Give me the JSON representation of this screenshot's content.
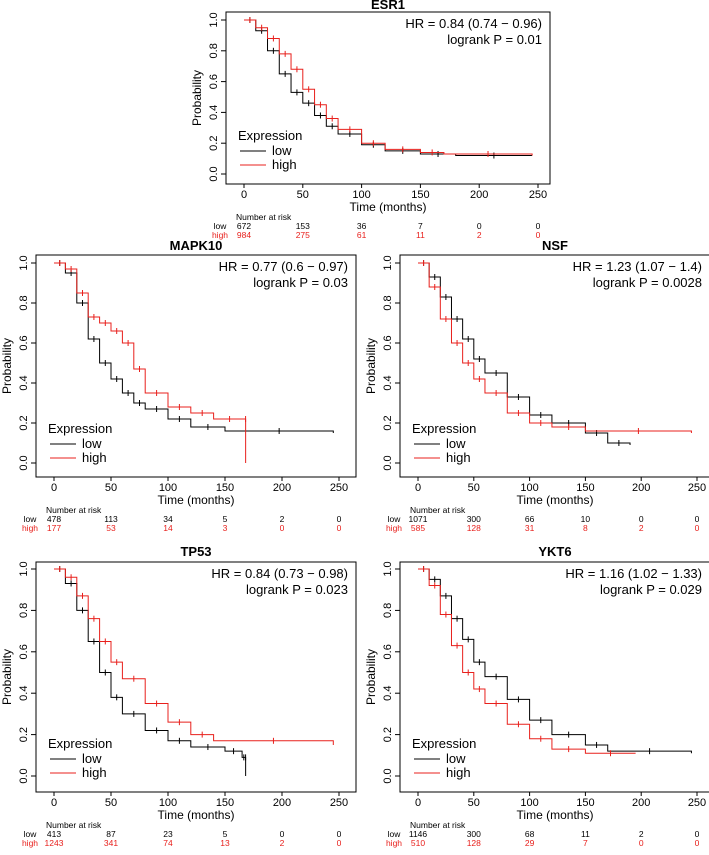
{
  "colors": {
    "low": "#000000",
    "high": "#e8201c"
  },
  "chart_data": [
    {
      "type": "line",
      "title": "ESR1",
      "hr_text": "HR = 0.84 (0.74 − 0.96)",
      "logrank_text": "logrank P = 0.01",
      "xlabel": "Time (months)",
      "ylabel": "Probability",
      "xlim": [
        0,
        250
      ],
      "ylim": [
        0,
        1
      ],
      "xticks": [
        "0",
        "50",
        "100",
        "150",
        "200",
        "250"
      ],
      "yticks": [
        "0.0",
        "0.2",
        "0.4",
        "0.6",
        "0.8",
        "1.0"
      ],
      "legend": {
        "title": "Expression",
        "placement": "bottom-left",
        "entries": [
          "low",
          "high"
        ]
      },
      "series": [
        {
          "name": "low",
          "x": [
            0,
            10,
            20,
            30,
            40,
            50,
            60,
            70,
            80,
            100,
            120,
            150,
            180,
            245
          ],
          "y": [
            1,
            0.93,
            0.8,
            0.65,
            0.53,
            0.46,
            0.38,
            0.31,
            0.26,
            0.19,
            0.15,
            0.13,
            0.12,
            0.12
          ]
        },
        {
          "name": "high",
          "x": [
            0,
            10,
            20,
            30,
            40,
            50,
            60,
            70,
            80,
            100,
            120,
            150,
            170,
            245
          ],
          "y": [
            1,
            0.95,
            0.88,
            0.78,
            0.68,
            0.55,
            0.45,
            0.36,
            0.29,
            0.2,
            0.16,
            0.14,
            0.13,
            0.12
          ]
        }
      ],
      "risk_table": {
        "header": "Number at risk",
        "low_label": "low",
        "high_label": "high",
        "low": [
          "672",
          "153",
          "36",
          "7",
          "0",
          "0"
        ],
        "high": [
          "984",
          "275",
          "61",
          "11",
          "2",
          "0"
        ]
      }
    },
    {
      "type": "line",
      "title": "MAPK10",
      "hr_text": "HR = 0.77 (0.6 − 0.97)",
      "logrank_text": "logrank P = 0.03",
      "xlabel": "Time (months)",
      "ylabel": "Probability",
      "xlim": [
        0,
        250
      ],
      "ylim": [
        0,
        1
      ],
      "xticks": [
        "0",
        "50",
        "100",
        "150",
        "200",
        "250"
      ],
      "yticks": [
        "0.0",
        "0.2",
        "0.4",
        "0.6",
        "0.8",
        "1.0"
      ],
      "legend": {
        "title": "Expression",
        "placement": "bottom-left",
        "entries": [
          "low",
          "high"
        ]
      },
      "series": [
        {
          "name": "low",
          "x": [
            0,
            10,
            20,
            30,
            40,
            50,
            60,
            70,
            80,
            100,
            120,
            150,
            245
          ],
          "y": [
            1,
            0.95,
            0.8,
            0.62,
            0.5,
            0.42,
            0.35,
            0.3,
            0.27,
            0.22,
            0.18,
            0.16,
            0.15
          ]
        },
        {
          "name": "high",
          "x": [
            0,
            10,
            20,
            30,
            40,
            50,
            60,
            70,
            80,
            100,
            120,
            140,
            168,
            168.1
          ],
          "y": [
            1,
            0.97,
            0.85,
            0.73,
            0.7,
            0.66,
            0.6,
            0.47,
            0.35,
            0.28,
            0.25,
            0.22,
            0.22,
            0.0
          ]
        }
      ],
      "risk_table": {
        "header": "Number at risk",
        "low_label": "low",
        "high_label": "high",
        "low": [
          "478",
          "113",
          "34",
          "5",
          "2",
          "0"
        ],
        "high": [
          "177",
          "53",
          "14",
          "3",
          "0",
          "0"
        ]
      }
    },
    {
      "type": "line",
      "title": "NSF",
      "hr_text": "HR = 1.23 (1.07 − 1.4)",
      "logrank_text": "logrank P = 0.0028",
      "xlabel": "Time (months)",
      "ylabel": "Probability",
      "xlim": [
        0,
        250
      ],
      "ylim": [
        0,
        1
      ],
      "xticks": [
        "0",
        "50",
        "100",
        "150",
        "200",
        "250"
      ],
      "yticks": [
        "0.0",
        "0.2",
        "0.4",
        "0.6",
        "0.8",
        "1.0"
      ],
      "legend": {
        "title": "Expression",
        "placement": "bottom-left",
        "entries": [
          "low",
          "high"
        ]
      },
      "series": [
        {
          "name": "low",
          "x": [
            0,
            10,
            20,
            30,
            40,
            50,
            60,
            80,
            100,
            120,
            150,
            170,
            190
          ],
          "y": [
            1,
            0.93,
            0.83,
            0.72,
            0.62,
            0.52,
            0.45,
            0.33,
            0.24,
            0.2,
            0.15,
            0.1,
            0.09
          ]
        },
        {
          "name": "high",
          "x": [
            0,
            10,
            20,
            30,
            40,
            50,
            60,
            80,
            100,
            120,
            150,
            245
          ],
          "y": [
            1,
            0.88,
            0.72,
            0.6,
            0.5,
            0.42,
            0.35,
            0.25,
            0.2,
            0.18,
            0.16,
            0.15
          ]
        }
      ],
      "risk_table": {
        "header": "Number at risk",
        "low_label": "low",
        "high_label": "high",
        "low": [
          "1071",
          "300",
          "66",
          "10",
          "0",
          "0"
        ],
        "high": [
          "585",
          "128",
          "31",
          "8",
          "2",
          "0"
        ]
      }
    },
    {
      "type": "line",
      "title": "TP53",
      "hr_text": "HR = 0.84 (0.73 − 0.98)",
      "logrank_text": "logrank P = 0.023",
      "xlabel": "Time (months)",
      "ylabel": "Probability",
      "xlim": [
        0,
        250
      ],
      "ylim": [
        0,
        1
      ],
      "xticks": [
        "0",
        "50",
        "100",
        "150",
        "200",
        "250"
      ],
      "yticks": [
        "0.0",
        "0.2",
        "0.4",
        "0.6",
        "0.8",
        "1.0"
      ],
      "legend": {
        "title": "Expression",
        "placement": "bottom-left",
        "entries": [
          "low",
          "high"
        ]
      },
      "series": [
        {
          "name": "low",
          "x": [
            0,
            10,
            20,
            30,
            40,
            50,
            60,
            80,
            100,
            120,
            150,
            165,
            168,
            168.1
          ],
          "y": [
            1,
            0.93,
            0.8,
            0.65,
            0.5,
            0.38,
            0.3,
            0.22,
            0.17,
            0.14,
            0.12,
            0.09,
            0.09,
            0.0
          ]
        },
        {
          "name": "high",
          "x": [
            0,
            10,
            20,
            30,
            40,
            50,
            60,
            80,
            100,
            120,
            140,
            245
          ],
          "y": [
            1,
            0.96,
            0.87,
            0.76,
            0.65,
            0.55,
            0.47,
            0.35,
            0.26,
            0.2,
            0.17,
            0.15
          ]
        }
      ],
      "risk_table": {
        "header": "Number at risk",
        "low_label": "low",
        "high_label": "high",
        "low": [
          "413",
          "87",
          "23",
          "5",
          "0",
          "0"
        ],
        "high": [
          "1243",
          "341",
          "74",
          "13",
          "2",
          "0"
        ]
      }
    },
    {
      "type": "line",
      "title": "YKT6",
      "hr_text": "HR = 1.16 (1.02 − 1.33)",
      "logrank_text": "logrank P = 0.029",
      "xlabel": "Time (months)",
      "ylabel": "Probability",
      "xlim": [
        0,
        250
      ],
      "ylim": [
        0,
        1
      ],
      "xticks": [
        "0",
        "50",
        "100",
        "150",
        "200",
        "250"
      ],
      "yticks": [
        "0.0",
        "0.2",
        "0.4",
        "0.6",
        "0.8",
        "1.0"
      ],
      "legend": {
        "title": "Expression",
        "placement": "bottom-left",
        "entries": [
          "low",
          "high"
        ]
      },
      "series": [
        {
          "name": "low",
          "x": [
            0,
            10,
            20,
            30,
            40,
            50,
            60,
            80,
            100,
            120,
            150,
            170,
            245
          ],
          "y": [
            1,
            0.95,
            0.87,
            0.76,
            0.66,
            0.55,
            0.48,
            0.37,
            0.27,
            0.2,
            0.15,
            0.12,
            0.11
          ]
        },
        {
          "name": "high",
          "x": [
            0,
            10,
            20,
            30,
            40,
            50,
            60,
            80,
            100,
            120,
            150,
            195
          ],
          "y": [
            1,
            0.92,
            0.78,
            0.63,
            0.5,
            0.42,
            0.35,
            0.25,
            0.18,
            0.13,
            0.11,
            0.11
          ]
        }
      ],
      "risk_table": {
        "header": "Number at risk",
        "low_label": "low",
        "high_label": "high",
        "low": [
          "1146",
          "300",
          "68",
          "11",
          "2",
          "0"
        ],
        "high": [
          "510",
          "128",
          "29",
          "7",
          "0",
          "0"
        ]
      }
    }
  ]
}
